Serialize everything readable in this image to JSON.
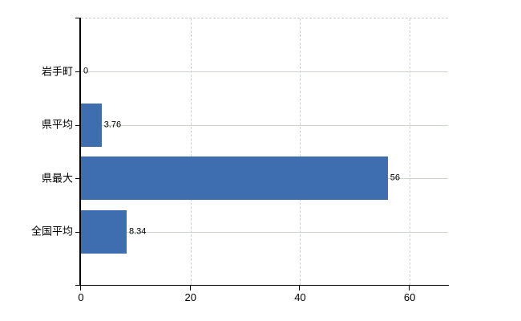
{
  "chart_data": {
    "type": "bar",
    "orientation": "horizontal",
    "title": "",
    "xlabel": "",
    "ylabel": "",
    "categories": [
      "岩手町",
      "県平均",
      "県最大",
      "全国平均"
    ],
    "values": [
      0,
      3.76,
      56,
      8.34
    ],
    "value_labels": [
      "0",
      "3.76",
      "56",
      "8.34"
    ],
    "xlim": [
      0,
      67
    ],
    "xticks": [
      0,
      20,
      40,
      60
    ],
    "xtick_labels": [
      "0",
      "20",
      "40",
      "60"
    ],
    "legend": false,
    "grid": true,
    "colors": {
      "bar": "#3E6EAF",
      "axis": "#000000",
      "hgrid": "#ccd6cc",
      "vgrid": "#d2cdd2",
      "text": "#000000",
      "background": "#ffffff"
    }
  }
}
